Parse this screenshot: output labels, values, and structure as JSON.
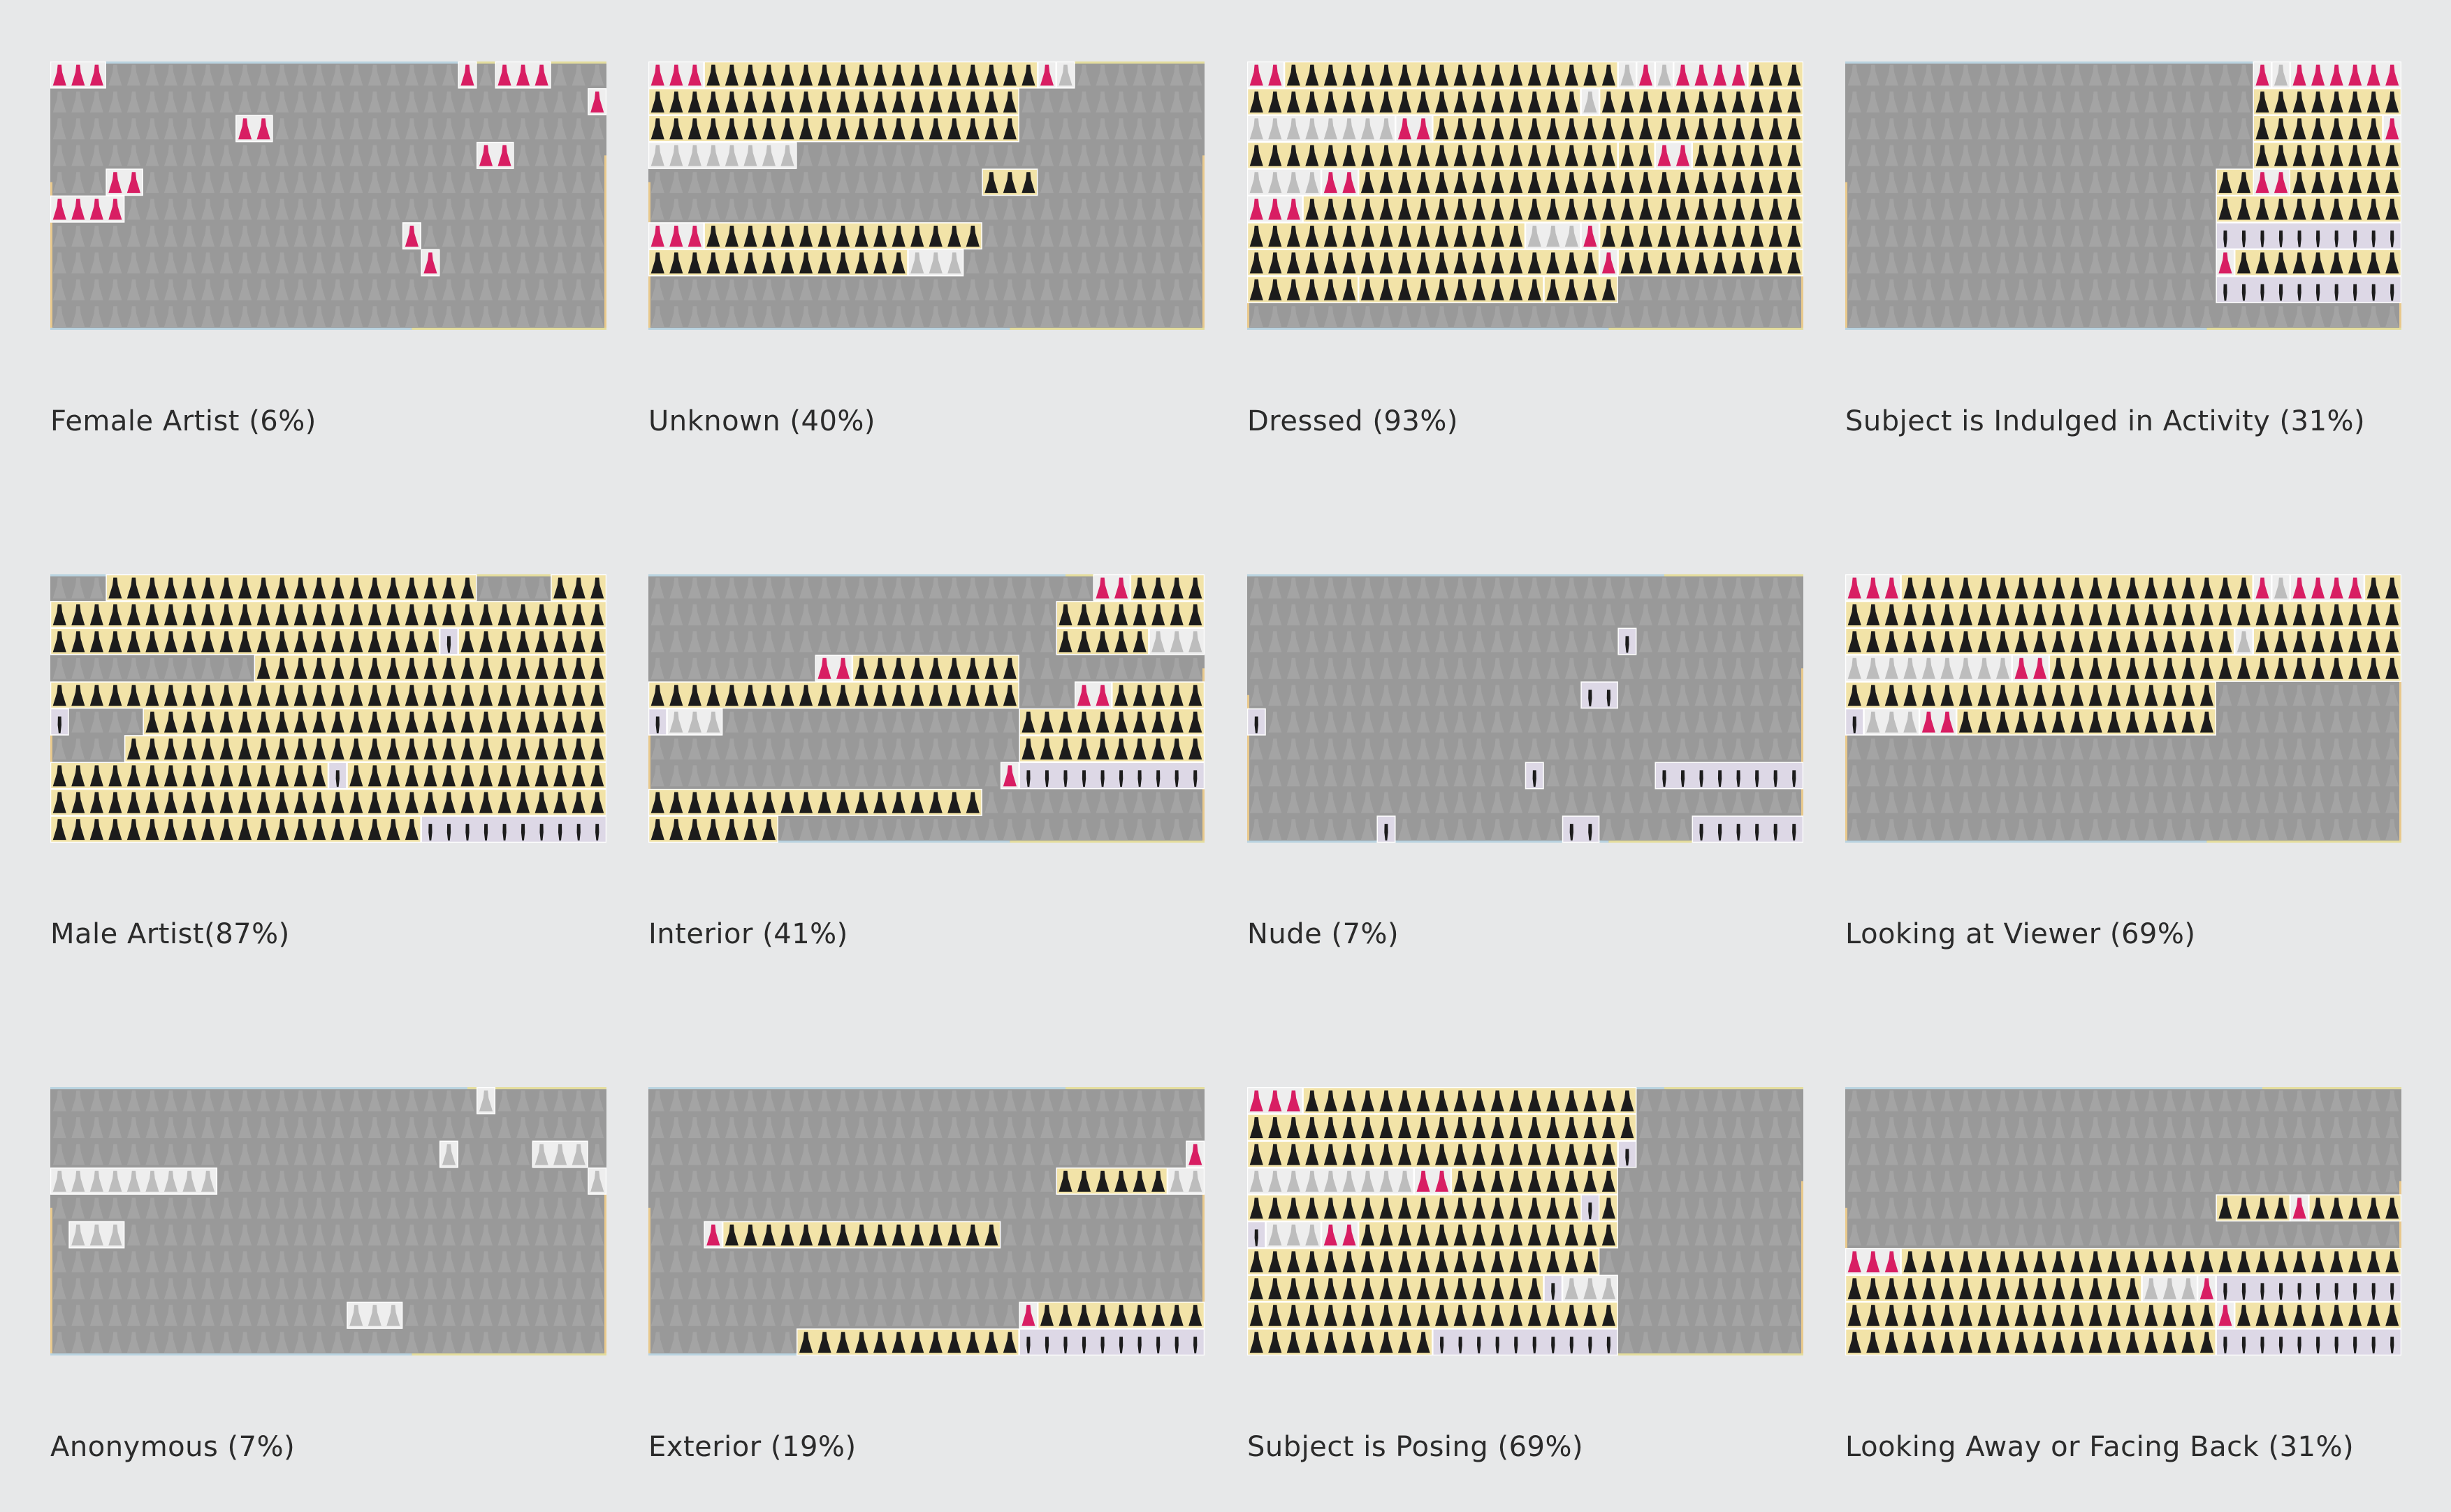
{
  "chart_data": [
    {
      "type": "pictogram",
      "title": "Female Artist (6%)",
      "percent": 6,
      "runs": [
        [
          0,
          0,
          3,
          "pink"
        ],
        [
          0,
          22,
          1,
          "pink"
        ],
        [
          0,
          24,
          3,
          "pink"
        ],
        [
          2,
          10,
          2,
          "pink"
        ],
        [
          3,
          23,
          2,
          "pink"
        ],
        [
          4,
          3,
          2,
          "pink"
        ],
        [
          5,
          0,
          4,
          "pink"
        ],
        [
          6,
          19,
          1,
          "pink"
        ],
        [
          7,
          20,
          1,
          "pink"
        ],
        [
          1,
          29,
          1,
          "pink"
        ]
      ]
    },
    {
      "type": "pictogram",
      "title": "Unknown (40%)",
      "percent": 40,
      "runs": [
        [
          0,
          0,
          3,
          "pink"
        ],
        [
          0,
          3,
          18,
          "black"
        ],
        [
          0,
          21,
          1,
          "pink"
        ],
        [
          0,
          22,
          1,
          "grey"
        ],
        [
          1,
          0,
          20,
          "black"
        ],
        [
          2,
          0,
          20,
          "black"
        ],
        [
          3,
          0,
          8,
          "grey"
        ],
        [
          4,
          18,
          3,
          "black"
        ],
        [
          6,
          0,
          3,
          "pink"
        ],
        [
          6,
          3,
          15,
          "black"
        ],
        [
          7,
          0,
          14,
          "black"
        ],
        [
          7,
          14,
          3,
          "grey"
        ]
      ]
    },
    {
      "type": "pictogram",
      "title": "Dressed (93%)",
      "percent": 93,
      "runs": [
        [
          0,
          0,
          2,
          "pink"
        ],
        [
          0,
          2,
          18,
          "black"
        ],
        [
          0,
          20,
          1,
          "grey"
        ],
        [
          0,
          21,
          1,
          "pink"
        ],
        [
          0,
          22,
          1,
          "grey"
        ],
        [
          0,
          23,
          4,
          "pink"
        ],
        [
          0,
          27,
          3,
          "black"
        ],
        [
          1,
          0,
          18,
          "black"
        ],
        [
          1,
          18,
          1,
          "grey"
        ],
        [
          1,
          19,
          11,
          "black"
        ],
        [
          2,
          0,
          8,
          "grey"
        ],
        [
          2,
          8,
          2,
          "pink"
        ],
        [
          2,
          10,
          20,
          "black"
        ],
        [
          3,
          0,
          20,
          "black"
        ],
        [
          3,
          20,
          2,
          "black"
        ],
        [
          3,
          22,
          2,
          "pink"
        ],
        [
          3,
          24,
          6,
          "black"
        ],
        [
          4,
          0,
          4,
          "grey"
        ],
        [
          4,
          4,
          2,
          "pink"
        ],
        [
          4,
          6,
          24,
          "black"
        ],
        [
          5,
          0,
          3,
          "pink"
        ],
        [
          5,
          3,
          27,
          "black"
        ],
        [
          6,
          0,
          15,
          "black"
        ],
        [
          6,
          15,
          3,
          "grey"
        ],
        [
          6,
          18,
          1,
          "pink"
        ],
        [
          6,
          19,
          11,
          "black"
        ],
        [
          7,
          0,
          19,
          "black"
        ],
        [
          7,
          19,
          1,
          "pink"
        ],
        [
          7,
          20,
          10,
          "black"
        ],
        [
          8,
          0,
          6,
          "black"
        ],
        [
          8,
          6,
          10,
          "black"
        ],
        [
          8,
          16,
          4,
          "black"
        ]
      ]
    },
    {
      "type": "pictogram",
      "title": "Subject is Indulged in Activity (31%)",
      "percent": 31,
      "runs": [
        [
          0,
          22,
          1,
          "pink"
        ],
        [
          0,
          23,
          1,
          "grey"
        ],
        [
          0,
          24,
          6,
          "pink"
        ],
        [
          1,
          22,
          8,
          "black"
        ],
        [
          2,
          22,
          7,
          "black"
        ],
        [
          2,
          29,
          1,
          "pink"
        ],
        [
          3,
          22,
          8,
          "black"
        ],
        [
          4,
          20,
          10,
          "black"
        ],
        [
          4,
          22,
          2,
          "pink"
        ],
        [
          5,
          20,
          10,
          "black"
        ],
        [
          6,
          20,
          10,
          "figure"
        ],
        [
          7,
          20,
          1,
          "pink"
        ],
        [
          7,
          21,
          9,
          "black"
        ],
        [
          8,
          20,
          10,
          "figure"
        ]
      ]
    },
    {
      "type": "pictogram",
      "title": "Male Artist(87%)",
      "percent": 87,
      "runs": [
        [
          0,
          3,
          20,
          "black"
        ],
        [
          0,
          27,
          3,
          "black"
        ],
        [
          1,
          0,
          30,
          "black"
        ],
        [
          2,
          0,
          21,
          "black"
        ],
        [
          2,
          21,
          1,
          "figure"
        ],
        [
          2,
          22,
          8,
          "black"
        ],
        [
          3,
          11,
          19,
          "black"
        ],
        [
          4,
          0,
          30,
          "black"
        ],
        [
          5,
          0,
          1,
          "figure"
        ],
        [
          5,
          5,
          25,
          "black"
        ],
        [
          6,
          4,
          26,
          "black"
        ],
        [
          7,
          0,
          15,
          "black"
        ],
        [
          7,
          15,
          1,
          "figure"
        ],
        [
          7,
          16,
          14,
          "black"
        ],
        [
          8,
          0,
          30,
          "black"
        ],
        [
          9,
          0,
          20,
          "black"
        ],
        [
          9,
          20,
          10,
          "figure"
        ]
      ]
    },
    {
      "type": "pictogram",
      "title": "Interior (41%)",
      "percent": 41,
      "runs": [
        [
          0,
          24,
          2,
          "pink"
        ],
        [
          0,
          26,
          4,
          "black"
        ],
        [
          1,
          22,
          8,
          "black"
        ],
        [
          2,
          22,
          5,
          "black"
        ],
        [
          2,
          27,
          3,
          "grey"
        ],
        [
          3,
          9,
          2,
          "pink"
        ],
        [
          3,
          11,
          9,
          "black"
        ],
        [
          4,
          0,
          20,
          "black"
        ],
        [
          4,
          23,
          2,
          "pink"
        ],
        [
          4,
          25,
          5,
          "black"
        ],
        [
          5,
          0,
          1,
          "figure"
        ],
        [
          5,
          1,
          3,
          "grey"
        ],
        [
          5,
          20,
          10,
          "black"
        ],
        [
          6,
          20,
          10,
          "black"
        ],
        [
          7,
          19,
          1,
          "pink"
        ],
        [
          7,
          20,
          10,
          "figure"
        ],
        [
          8,
          0,
          18,
          "black"
        ],
        [
          9,
          0,
          7,
          "black"
        ]
      ]
    },
    {
      "type": "pictogram",
      "title": "Nude (7%)",
      "percent": 7,
      "runs": [
        [
          2,
          20,
          1,
          "figure"
        ],
        [
          4,
          18,
          2,
          "figure"
        ],
        [
          5,
          0,
          1,
          "figure"
        ],
        [
          7,
          15,
          1,
          "figure"
        ],
        [
          7,
          22,
          8,
          "figure"
        ],
        [
          9,
          7,
          1,
          "figure"
        ],
        [
          9,
          17,
          2,
          "figure"
        ],
        [
          9,
          24,
          6,
          "figure"
        ]
      ]
    },
    {
      "type": "pictogram",
      "title": "Looking at Viewer (69%)",
      "percent": 69,
      "runs": [
        [
          0,
          0,
          3,
          "pink"
        ],
        [
          0,
          3,
          19,
          "black"
        ],
        [
          0,
          22,
          1,
          "pink"
        ],
        [
          0,
          23,
          1,
          "grey"
        ],
        [
          0,
          24,
          4,
          "pink"
        ],
        [
          0,
          28,
          2,
          "black"
        ],
        [
          1,
          0,
          30,
          "black"
        ],
        [
          2,
          0,
          21,
          "black"
        ],
        [
          2,
          21,
          1,
          "grey"
        ],
        [
          2,
          22,
          8,
          "black"
        ],
        [
          3,
          0,
          9,
          "grey"
        ],
        [
          3,
          9,
          2,
          "pink"
        ],
        [
          3,
          11,
          19,
          "black"
        ],
        [
          4,
          0,
          20,
          "black"
        ],
        [
          5,
          0,
          1,
          "figure"
        ],
        [
          5,
          1,
          3,
          "grey"
        ],
        [
          5,
          4,
          2,
          "pink"
        ],
        [
          5,
          6,
          14,
          "black"
        ]
      ]
    },
    {
      "type": "pictogram",
      "title": "Anonymous (7%)",
      "percent": 7,
      "runs": [
        [
          0,
          23,
          1,
          "grey"
        ],
        [
          2,
          21,
          1,
          "grey"
        ],
        [
          2,
          26,
          3,
          "grey"
        ],
        [
          3,
          0,
          9,
          "grey"
        ],
        [
          3,
          29,
          1,
          "grey"
        ],
        [
          5,
          1,
          3,
          "grey"
        ],
        [
          8,
          16,
          3,
          "grey"
        ]
      ]
    },
    {
      "type": "pictogram",
      "title": "Exterior (19%)",
      "percent": 19,
      "runs": [
        [
          2,
          29,
          1,
          "pink"
        ],
        [
          3,
          22,
          6,
          "black"
        ],
        [
          3,
          28,
          2,
          "grey"
        ],
        [
          5,
          3,
          1,
          "pink"
        ],
        [
          5,
          4,
          15,
          "black"
        ],
        [
          8,
          20,
          1,
          "pink"
        ],
        [
          8,
          21,
          9,
          "black"
        ],
        [
          9,
          8,
          12,
          "black"
        ],
        [
          9,
          20,
          10,
          "figure"
        ]
      ]
    },
    {
      "type": "pictogram",
      "title": "Subject is Posing (69%)",
      "percent": 69,
      "runs": [
        [
          0,
          0,
          3,
          "pink"
        ],
        [
          0,
          3,
          18,
          "black"
        ],
        [
          1,
          0,
          21,
          "black"
        ],
        [
          2,
          0,
          20,
          "black"
        ],
        [
          2,
          20,
          1,
          "figure"
        ],
        [
          3,
          0,
          9,
          "grey"
        ],
        [
          3,
          9,
          2,
          "pink"
        ],
        [
          3,
          11,
          9,
          "black"
        ],
        [
          4,
          0,
          20,
          "black"
        ],
        [
          4,
          18,
          1,
          "figure"
        ],
        [
          5,
          0,
          1,
          "figure"
        ],
        [
          5,
          1,
          3,
          "grey"
        ],
        [
          5,
          4,
          2,
          "pink"
        ],
        [
          5,
          6,
          14,
          "black"
        ],
        [
          6,
          0,
          19,
          "black"
        ],
        [
          7,
          0,
          16,
          "black"
        ],
        [
          7,
          16,
          1,
          "figure"
        ],
        [
          7,
          17,
          3,
          "grey"
        ],
        [
          8,
          0,
          20,
          "black"
        ],
        [
          9,
          0,
          10,
          "black"
        ],
        [
          9,
          10,
          10,
          "figure"
        ]
      ]
    },
    {
      "type": "pictogram",
      "title": "Looking Away or Facing Back (31%)",
      "percent": 31,
      "runs": [
        [
          4,
          20,
          4,
          "black"
        ],
        [
          4,
          24,
          1,
          "pink"
        ],
        [
          4,
          25,
          5,
          "black"
        ],
        [
          6,
          0,
          3,
          "pink"
        ],
        [
          6,
          3,
          27,
          "black"
        ],
        [
          7,
          0,
          16,
          "black"
        ],
        [
          7,
          16,
          3,
          "grey"
        ],
        [
          7,
          19,
          1,
          "pink"
        ],
        [
          7,
          20,
          10,
          "figure"
        ],
        [
          8,
          0,
          20,
          "black"
        ],
        [
          8,
          20,
          1,
          "pink"
        ],
        [
          8,
          21,
          9,
          "black"
        ],
        [
          9,
          0,
          20,
          "black"
        ],
        [
          9,
          20,
          10,
          "figure"
        ]
      ]
    }
  ],
  "legend_colors": {
    "background": "#e7e8e9",
    "panel": "#999999",
    "pink": "#d81e63",
    "black": "#1c1c1c",
    "grey": "#bdbdbd",
    "figure": "#1c1c1c",
    "cell_light": "#eeeeee",
    "cell_yellow": "#f2e3a8",
    "cell_lavender": "#ddd8e6"
  }
}
